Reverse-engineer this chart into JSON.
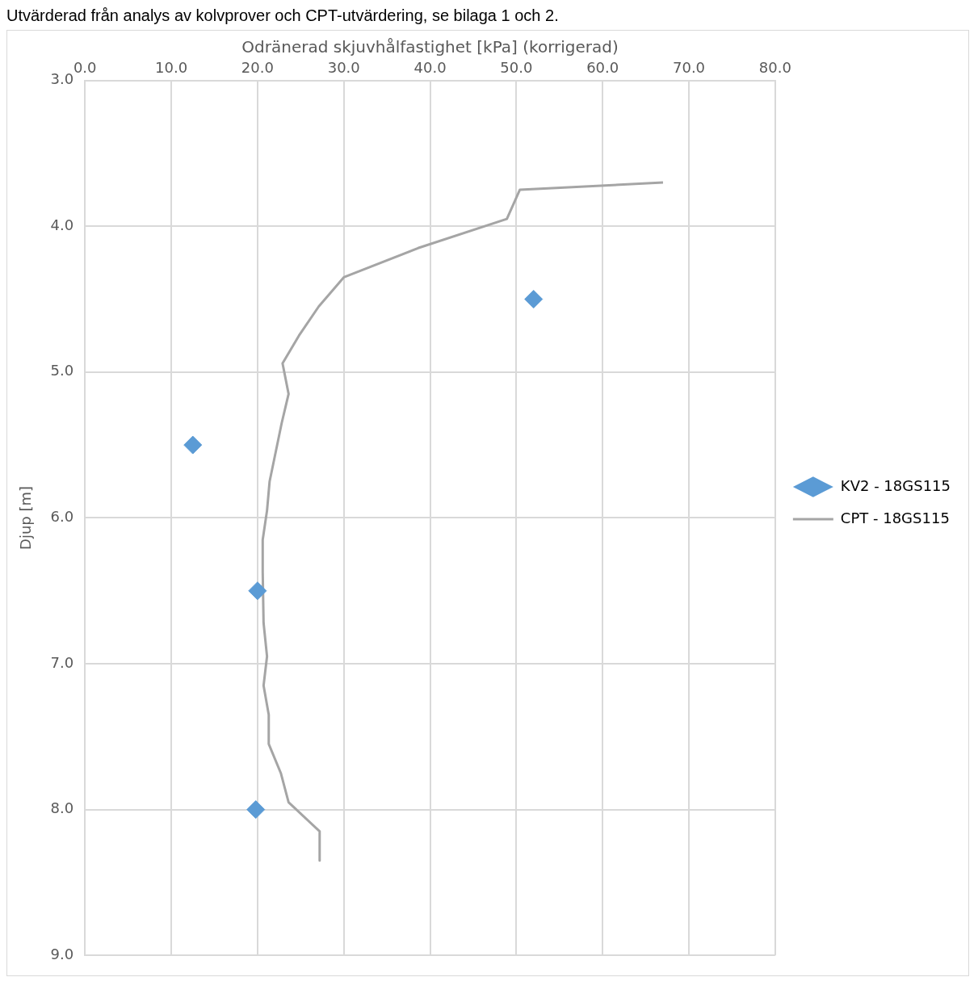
{
  "chart_data": {
    "type": "scatter",
    "annotations": [
      "Utvärderad från analys av kolvprover och CPT-utvärdering, se bilaga 1 och 2."
    ],
    "xlabel": "Odränerad skjuvhålfastighet [kPa] (korrigerad)",
    "ylabel": "Djup [m]",
    "xlim": [
      0,
      80
    ],
    "xticks": [
      {
        "value": 0,
        "label": "0.0"
      },
      {
        "value": 10,
        "label": "10.0"
      },
      {
        "value": 20,
        "label": "20.0"
      },
      {
        "value": 30,
        "label": "30.0"
      },
      {
        "value": 40,
        "label": "40.0"
      },
      {
        "value": 50,
        "label": "50.0"
      },
      {
        "value": 60,
        "label": "60.0"
      },
      {
        "value": 70,
        "label": "70.0"
      },
      {
        "value": 80,
        "label": "80.0"
      }
    ],
    "ylim": [
      9,
      3
    ],
    "yticks": [
      {
        "value": 3,
        "label": "3.0"
      },
      {
        "value": 4,
        "label": "4.0"
      },
      {
        "value": 5,
        "label": "5.0"
      },
      {
        "value": 6,
        "label": "6.0"
      },
      {
        "value": 7,
        "label": "7.0"
      },
      {
        "value": 8,
        "label": "8.0"
      },
      {
        "value": 9,
        "label": "9.0"
      }
    ],
    "grid": true,
    "legend": "right",
    "series": [
      {
        "name": "KV2 - 18GS115",
        "marker": "diamond",
        "color": "#5b9bd5",
        "x": [
          52.0,
          12.5,
          20.0,
          19.8
        ],
        "values": [
          4.5,
          5.5,
          6.5,
          8.0
        ]
      },
      {
        "name": "CPT - 18GS115",
        "type": "line",
        "marker": "none",
        "color": "#a5a5a5",
        "x": [
          67.0,
          50.4,
          48.9,
          38.6,
          30.0,
          27.1,
          24.8,
          22.9,
          23.6,
          22.8,
          21.4,
          21.1,
          20.6,
          20.6,
          20.7,
          21.1,
          20.7,
          21.3,
          21.3,
          22.7,
          23.6,
          27.2,
          27.2
        ],
        "values": [
          3.7,
          3.75,
          3.95,
          4.15,
          4.35,
          4.55,
          4.75,
          4.94,
          5.15,
          5.35,
          5.75,
          5.95,
          6.15,
          6.37,
          6.72,
          6.95,
          7.15,
          7.35,
          7.55,
          7.75,
          7.95,
          8.15,
          8.35
        ]
      }
    ]
  }
}
